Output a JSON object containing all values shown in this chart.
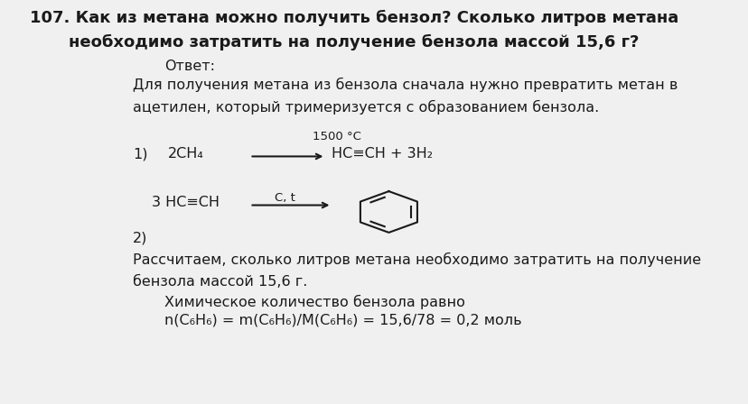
{
  "bg_color": "#f0f0f0",
  "page_bg": "#ffffff",
  "title_bold": "107. Как из метана можно получить бензол? Сколько литров метана\nнеобходимо затратить на получение бензола массой 15,6 г?",
  "answer_label": "Ответ:",
  "body_text1": "Для получения метана из бензола сначала нужно превратить метан в\nацетилен, который тримеризуется с образованием бензола.",
  "condition_label1": "1500 °C",
  "reaction1_left": "2CH₄",
  "reaction1_right": "HC≡CH + 3H₂",
  "reaction2_condition": "C, t",
  "reaction2_left": "3 HC≡CH",
  "label1": "1)",
  "label2": "2)",
  "body_text2": "Рассчитаем, сколько литров метана необходимо затратить на получение\nбензола массой 15,6 г.",
  "chem_label": "Химическое количество бензола равно",
  "formula_line": "n(C₆H₆) = m(C₆H₆)/M(C₆H₆) = 15,6/78 = 0,2 моль",
  "text_color": "#1a1a1a",
  "font_size_title": 13,
  "font_size_body": 11.5,
  "font_size_small": 10.5
}
